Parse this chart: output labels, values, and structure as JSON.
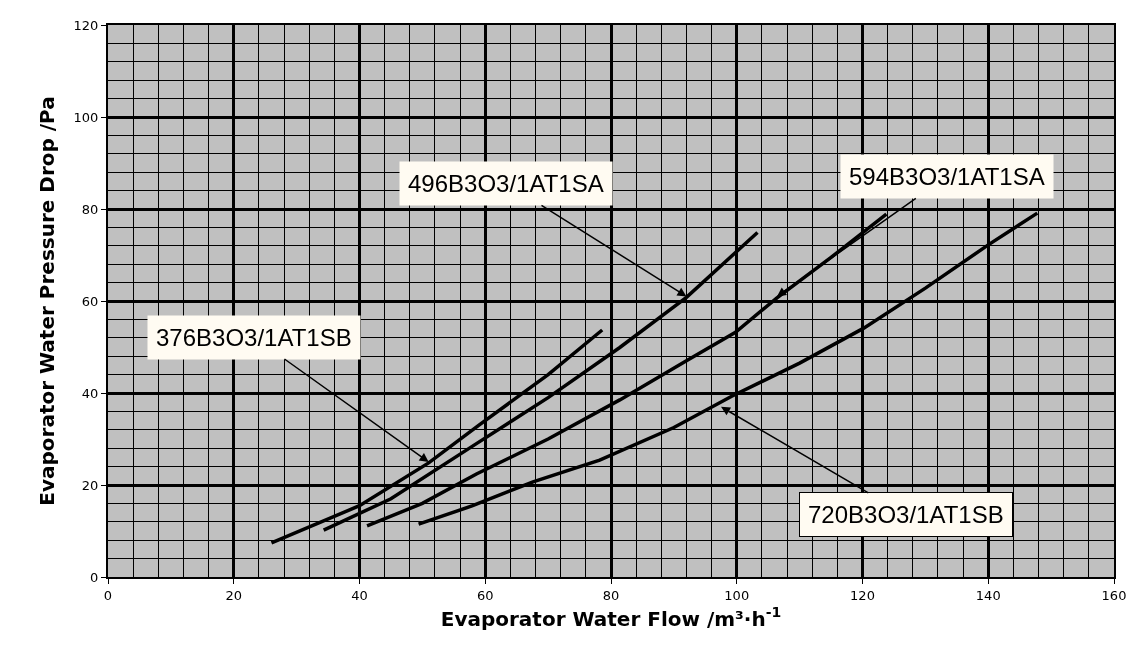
{
  "chart_data": {
    "type": "line",
    "xlabel": "Evaporator Water Flow /m³·h$^{-1}$",
    "ylabel": "Evaporator Water Pressure Drop /Pa",
    "xlim": [
      0,
      160
    ],
    "xticks": [
      0,
      20,
      40,
      60,
      80,
      100,
      120,
      140,
      160
    ],
    "ylim": [
      0,
      120
    ],
    "yticks": [
      0,
      20,
      40,
      60,
      80,
      100,
      120
    ],
    "grid": true,
    "marker": "none",
    "line_style": "solid",
    "series": [
      {
        "color": "#000000",
        "x": [
          26,
          40,
          51,
          59,
          70,
          78.6
        ],
        "values": [
          7.4,
          15.5,
          24.8,
          33,
          44,
          53.7
        ]
      },
      {
        "color": "#000000",
        "x": [
          34.3,
          45,
          58.6,
          70,
          81.4,
          92,
          103.3
        ],
        "values": [
          10.2,
          17,
          29,
          39,
          49.9,
          60.8,
          74.9
        ]
      },
      {
        "color": "#000000",
        "x": [
          41.2,
          50,
          58.6,
          70,
          81.4,
          92,
          99.8,
          106.4,
          115,
          123.8
        ],
        "values": [
          11.1,
          16,
          22.4,
          30,
          38.5,
          47,
          53.2,
          60.7,
          69.5,
          78.9
        ]
      },
      {
        "color": "#000000",
        "x": [
          49.4,
          58,
          67.6,
          78.2,
          90,
          99.2,
          110,
          120.2,
          130,
          140,
          147.8
        ],
        "values": [
          11.5,
          15.5,
          20.7,
          25.4,
          32.5,
          39.3,
          46.5,
          54.1,
          62.8,
          72.2,
          79.1
        ]
      }
    ],
    "annotations": [
      {
        "text": "376B3O3/1AT1SB",
        "x": 51,
        "y": 25
      },
      {
        "text": "496B3O3/1AT1SA",
        "x": 92,
        "y": 61
      },
      {
        "text": "594B3O3/1AT1SA",
        "x": 106.4,
        "y": 61
      },
      {
        "text": "720B3O3/1AT1SB",
        "x": 97.5,
        "y": 37
      }
    ]
  }
}
